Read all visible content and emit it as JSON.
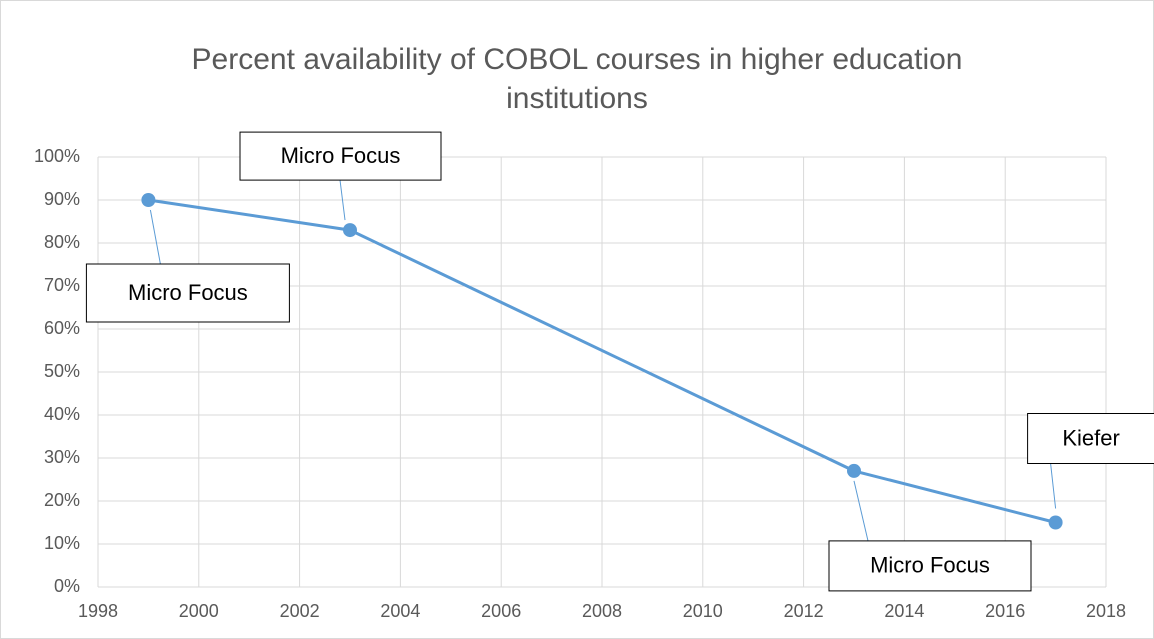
{
  "chart_data": {
    "type": "line",
    "title": "Percent availability of COBOL courses in higher education institutions",
    "x": [
      1999,
      2003,
      2013,
      2017
    ],
    "series": [
      {
        "color": "#5b9bd5",
        "values": [
          90,
          83,
          27,
          15
        ],
        "point_labels": [
          "Micro Focus",
          "Micro Focus",
          "Micro Focus",
          "Kiefer"
        ]
      }
    ],
    "xlim": [
      1998,
      2018
    ],
    "xticks": [
      1998,
      2000,
      2002,
      2004,
      2006,
      2008,
      2010,
      2012,
      2014,
      2016,
      2018
    ],
    "ylim": [
      0,
      100
    ],
    "yticks": [
      {
        "value": 0,
        "label": "0%"
      },
      {
        "value": 10,
        "label": "10%"
      },
      {
        "value": 20,
        "label": "20%"
      },
      {
        "value": 30,
        "label": "30%"
      },
      {
        "value": 40,
        "label": "40%"
      },
      {
        "value": 50,
        "label": "50%"
      },
      {
        "value": 60,
        "label": "60%"
      },
      {
        "value": 70,
        "label": "70%"
      },
      {
        "value": 80,
        "label": "80%"
      },
      {
        "value": 90,
        "label": "90%"
      },
      {
        "value": 100,
        "label": "100%"
      }
    ],
    "grid": true
  }
}
